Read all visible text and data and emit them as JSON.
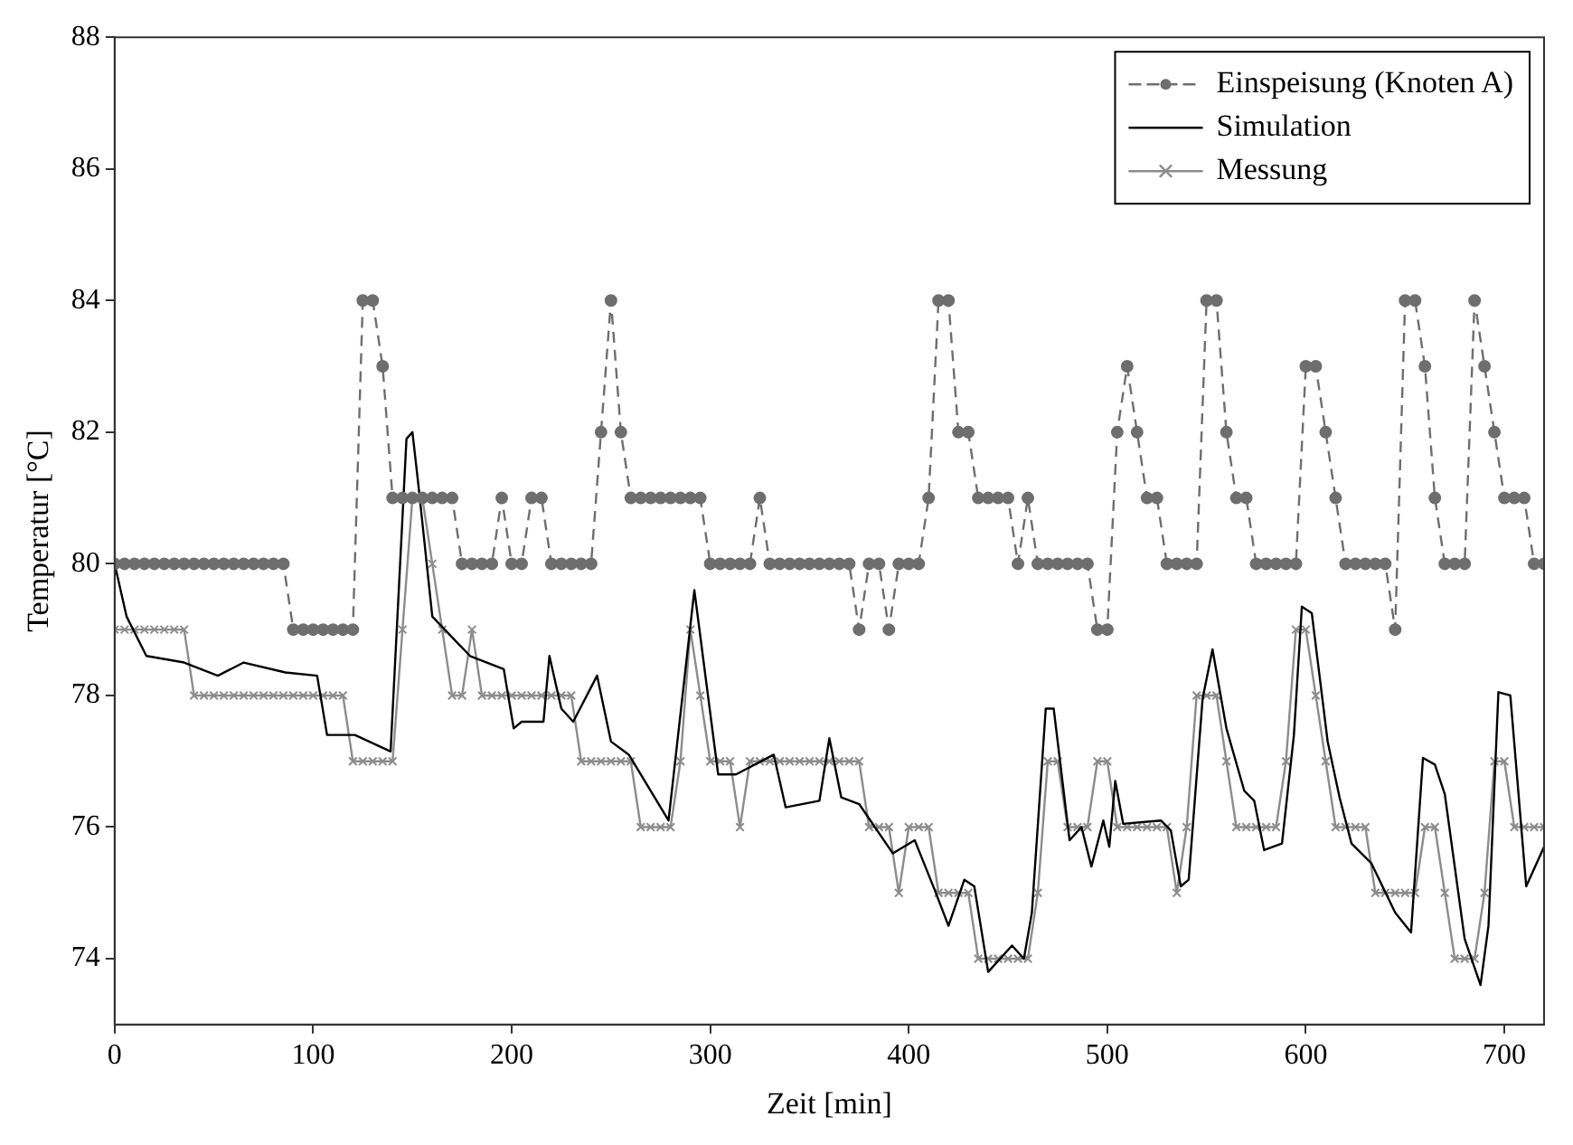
{
  "chart_data": {
    "type": "line",
    "xlabel": "Zeit [min]",
    "ylabel": "Temperatur [°C]",
    "xlim": [
      0,
      720
    ],
    "xticks": [
      0,
      100,
      200,
      300,
      400,
      500,
      600,
      700
    ],
    "ylim": [
      73,
      88
    ],
    "yticks": [
      74,
      76,
      78,
      80,
      82,
      84,
      86,
      88
    ],
    "grid": false,
    "legend": "top right",
    "series": [
      {
        "name": "Einspeisung (Knoten A)",
        "color": "#6e6e6e",
        "marker": "circle",
        "line_style": "dashed",
        "x": [
          0,
          5,
          10,
          15,
          20,
          25,
          30,
          35,
          40,
          45,
          50,
          55,
          60,
          65,
          70,
          75,
          80,
          85,
          90,
          95,
          100,
          105,
          110,
          115,
          120,
          125,
          130,
          135,
          140,
          145,
          150,
          155,
          160,
          165,
          170,
          175,
          180,
          185,
          190,
          195,
          200,
          205,
          210,
          215,
          220,
          225,
          230,
          235,
          240,
          245,
          250,
          255,
          260,
          265,
          270,
          275,
          280,
          285,
          290,
          295,
          300,
          305,
          310,
          315,
          320,
          325,
          330,
          335,
          340,
          345,
          350,
          355,
          360,
          365,
          370,
          375,
          380,
          385,
          390,
          395,
          400,
          405,
          410,
          415,
          420,
          425,
          430,
          435,
          440,
          445,
          450,
          455,
          460,
          465,
          470,
          475,
          480,
          485,
          490,
          495,
          500,
          505,
          510,
          515,
          520,
          525,
          530,
          535,
          540,
          545,
          550,
          555,
          560,
          565,
          570,
          575,
          580,
          585,
          590,
          595,
          600,
          605,
          610,
          615,
          620,
          625,
          630,
          635,
          640,
          645,
          650,
          655,
          660,
          665,
          670,
          675,
          680,
          685,
          690,
          695,
          700,
          705,
          710,
          715,
          720
        ],
        "values": [
          80,
          80,
          80,
          80,
          80,
          80,
          80,
          80,
          80,
          80,
          80,
          80,
          80,
          80,
          80,
          80,
          80,
          80,
          79,
          79,
          79,
          79,
          79,
          79,
          79,
          84,
          84,
          83,
          81,
          81,
          81,
          81,
          81,
          81,
          81,
          80,
          80,
          80,
          80,
          81,
          80,
          80,
          81,
          81,
          80,
          80,
          80,
          80,
          80,
          82,
          84,
          82,
          81,
          81,
          81,
          81,
          81,
          81,
          81,
          81,
          80,
          80,
          80,
          80,
          80,
          81,
          80,
          80,
          80,
          80,
          80,
          80,
          80,
          80,
          80,
          79,
          80,
          80,
          79,
          80,
          80,
          80,
          81,
          84,
          84,
          82,
          82,
          81,
          81,
          81,
          81,
          80,
          81,
          80,
          80,
          80,
          80,
          80,
          80,
          79,
          79,
          82,
          83,
          82,
          81,
          81,
          80,
          80,
          80,
          80,
          84,
          84,
          82,
          81,
          81,
          80,
          80,
          80,
          80,
          80,
          83,
          83,
          82,
          81,
          80,
          80,
          80,
          80,
          80,
          79,
          84,
          84,
          83,
          81,
          80,
          80,
          80,
          84,
          83,
          82,
          81,
          81,
          81,
          80,
          80
        ]
      },
      {
        "name": "Simulation",
        "color": "#000000",
        "marker": "none",
        "line_style": "solid",
        "x": [
          0,
          6,
          16,
          35,
          52,
          65,
          86,
          102,
          107,
          121,
          139,
          147,
          150,
          153,
          160,
          179,
          196,
          201,
          205,
          216,
          219,
          225,
          231,
          243,
          250,
          259,
          279,
          292,
          304,
          313,
          332,
          338,
          355,
          360,
          366,
          375,
          392,
          403,
          413,
          420,
          428,
          433,
          440,
          452,
          458,
          462,
          469,
          473,
          481,
          487,
          492,
          498,
          501,
          504,
          508,
          527,
          532,
          537,
          541,
          548,
          553,
          560,
          569,
          574,
          579,
          588,
          594,
          598,
          603,
          611,
          617,
          623,
          633,
          645,
          653,
          659,
          665,
          670,
          680,
          688,
          692,
          697,
          703,
          711,
          720
        ],
        "values": [
          80,
          79.2,
          78.6,
          78.5,
          78.3,
          78.5,
          78.35,
          78.3,
          77.4,
          77.4,
          77.15,
          81.9,
          82,
          81.2,
          79.2,
          78.6,
          78.4,
          77.5,
          77.6,
          77.6,
          78.6,
          77.8,
          77.6,
          78.3,
          77.3,
          77.1,
          76.1,
          79.6,
          76.8,
          76.8,
          77.1,
          76.3,
          76.4,
          77.35,
          76.45,
          76.35,
          75.6,
          75.8,
          75.05,
          74.5,
          75.2,
          75.1,
          73.8,
          74.2,
          74,
          74.7,
          77.8,
          77.8,
          75.8,
          76,
          75.4,
          76.1,
          75.7,
          76.7,
          76.05,
          76.1,
          75.95,
          75.1,
          75.2,
          77.95,
          78.7,
          77.5,
          76.55,
          76.4,
          75.65,
          75.75,
          77.4,
          79.35,
          79.25,
          77.3,
          76.45,
          75.75,
          75.45,
          74.7,
          74.4,
          77.05,
          76.95,
          76.5,
          74.3,
          73.6,
          74.5,
          78.05,
          78,
          75.1,
          75.7
        ]
      },
      {
        "name": "Messung",
        "color": "#8c8c8c",
        "marker": "cross",
        "line_style": "solid",
        "x": [
          0,
          5,
          10,
          15,
          20,
          25,
          30,
          35,
          40,
          45,
          50,
          55,
          60,
          65,
          70,
          75,
          80,
          85,
          90,
          95,
          100,
          105,
          110,
          115,
          120,
          125,
          130,
          135,
          140,
          145,
          150,
          155,
          160,
          165,
          170,
          175,
          180,
          185,
          190,
          195,
          200,
          205,
          210,
          215,
          220,
          225,
          230,
          235,
          240,
          245,
          250,
          255,
          260,
          265,
          270,
          275,
          280,
          285,
          290,
          295,
          300,
          305,
          310,
          315,
          320,
          325,
          330,
          335,
          340,
          345,
          350,
          355,
          360,
          365,
          370,
          375,
          380,
          385,
          390,
          395,
          400,
          405,
          410,
          415,
          420,
          425,
          430,
          435,
          440,
          445,
          450,
          455,
          460,
          465,
          470,
          475,
          480,
          485,
          490,
          495,
          500,
          505,
          510,
          515,
          520,
          525,
          530,
          535,
          540,
          545,
          550,
          555,
          560,
          565,
          570,
          575,
          580,
          585,
          590,
          595,
          600,
          605,
          610,
          615,
          620,
          625,
          630,
          635,
          640,
          645,
          650,
          655,
          660,
          665,
          670,
          675,
          680,
          685,
          690,
          695,
          700,
          705,
          710,
          715,
          720
        ],
        "values": [
          79,
          79,
          79,
          79,
          79,
          79,
          79,
          79,
          78,
          78,
          78,
          78,
          78,
          78,
          78,
          78,
          78,
          78,
          78,
          78,
          78,
          78,
          78,
          78,
          77,
          77,
          77,
          77,
          77,
          79,
          81,
          81,
          80,
          79,
          78,
          78,
          79,
          78,
          78,
          78,
          78,
          78,
          78,
          78,
          78,
          78,
          78,
          77,
          77,
          77,
          77,
          77,
          77,
          76,
          76,
          76,
          76,
          77,
          79,
          78,
          77,
          77,
          77,
          76,
          77,
          77,
          77,
          77,
          77,
          77,
          77,
          77,
          77,
          77,
          77,
          77,
          76,
          76,
          76,
          75,
          76,
          76,
          76,
          75,
          75,
          75,
          75,
          74,
          74,
          74,
          74,
          74,
          74,
          75,
          77,
          77,
          76,
          76,
          76,
          77,
          77,
          76,
          76,
          76,
          76,
          76,
          76,
          75,
          76,
          78,
          78,
          78,
          77,
          76,
          76,
          76,
          76,
          76,
          77,
          79,
          79,
          78,
          77,
          76,
          76,
          76,
          76,
          75,
          75,
          75,
          75,
          75,
          76,
          76,
          75,
          74,
          74,
          74,
          75,
          77,
          77,
          76,
          76,
          76,
          76
        ]
      }
    ]
  }
}
